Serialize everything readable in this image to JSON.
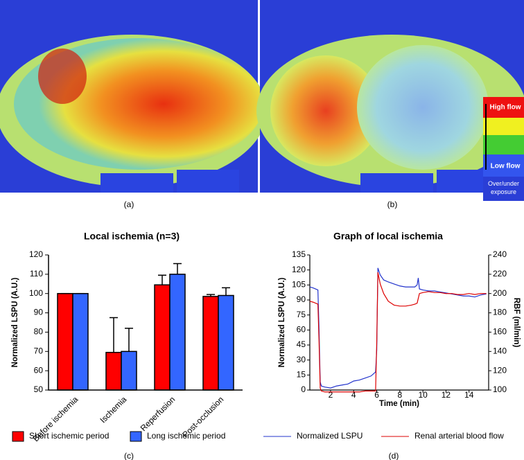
{
  "panels": {
    "a": "(a)",
    "b": "(b)",
    "c": "(c)",
    "d": "(d)"
  },
  "flow_legend": {
    "high": "High flow",
    "low": "Low flow",
    "exposure": "Over/under exposure"
  },
  "chart_data": [
    {
      "type": "bar",
      "title": "Local ischemia (n=3)",
      "ylabel": "Normalized LSPU (A.U.)",
      "categories": [
        "Before ischemia",
        "Ischemia",
        "Reperfusion",
        "Post-occlusion"
      ],
      "series": [
        {
          "name": "Short ischemic period",
          "color": "#ff0000",
          "values": [
            100,
            69.5,
            104.5,
            98.5
          ],
          "errors": [
            0,
            18,
            5,
            1
          ]
        },
        {
          "name": "Long ischemic period",
          "color": "#3366ff",
          "values": [
            100,
            70,
            110,
            99
          ],
          "errors": [
            0,
            12,
            5.5,
            4
          ]
        }
      ],
      "ylim": [
        50,
        120
      ],
      "yticks": [
        50,
        60,
        70,
        80,
        90,
        100,
        110,
        120
      ]
    },
    {
      "type": "line",
      "title": "Graph of local ischemia",
      "xlabel": "Time (min)",
      "ylabel": "Normalized LSPU (A.U.)",
      "y2label": "RBF (ml/min)",
      "x": [
        0.2,
        0.5,
        0.9,
        1.0,
        1.1,
        1.2,
        1.5,
        2,
        2.5,
        3,
        3.5,
        4,
        4.5,
        5,
        5.5,
        5.9,
        6.0,
        6.1,
        6.3,
        6.6,
        7,
        7.5,
        8,
        8.5,
        9,
        9.3,
        9.5,
        9.6,
        9.7,
        10,
        10.5,
        11,
        11.5,
        12,
        12.5,
        13,
        13.5,
        14,
        14.5,
        15,
        15.5
      ],
      "series": [
        {
          "name": "Normalized LSPU",
          "color": "#2233cc",
          "values": [
            103,
            102,
            100,
            60,
            8,
            4,
            3,
            2,
            4,
            5,
            6,
            9,
            10,
            12,
            14,
            18,
            40,
            122,
            115,
            110,
            108,
            106,
            104,
            103,
            103,
            103,
            105,
            112,
            101,
            100,
            99,
            99,
            98,
            97,
            96,
            95,
            94,
            94,
            93,
            95,
            96
          ]
        },
        {
          "name": "Renal arterial blood flow",
          "color": "#dd0000",
          "axis": "y2",
          "values": [
            192,
            191,
            189,
            150,
            102,
            99,
            98,
            98,
            98,
            98,
            98,
            98,
            98,
            99,
            99,
            99,
            150,
            222,
            210,
            200,
            192,
            188,
            187,
            187,
            188,
            189,
            190,
            195,
            200,
            201,
            202,
            201,
            201,
            200,
            200,
            199,
            199,
            200,
            199,
            200,
            200
          ]
        }
      ],
      "xlim": [
        0.2,
        15.7
      ],
      "xticks": [
        2,
        4,
        6,
        8,
        10,
        12,
        14
      ],
      "ylim": [
        0,
        135
      ],
      "yticks": [
        0,
        15,
        30,
        45,
        60,
        75,
        90,
        105,
        120,
        135
      ],
      "y2lim": [
        100,
        240
      ],
      "y2ticks": [
        100,
        120,
        140,
        160,
        180,
        200,
        220,
        240
      ]
    }
  ]
}
